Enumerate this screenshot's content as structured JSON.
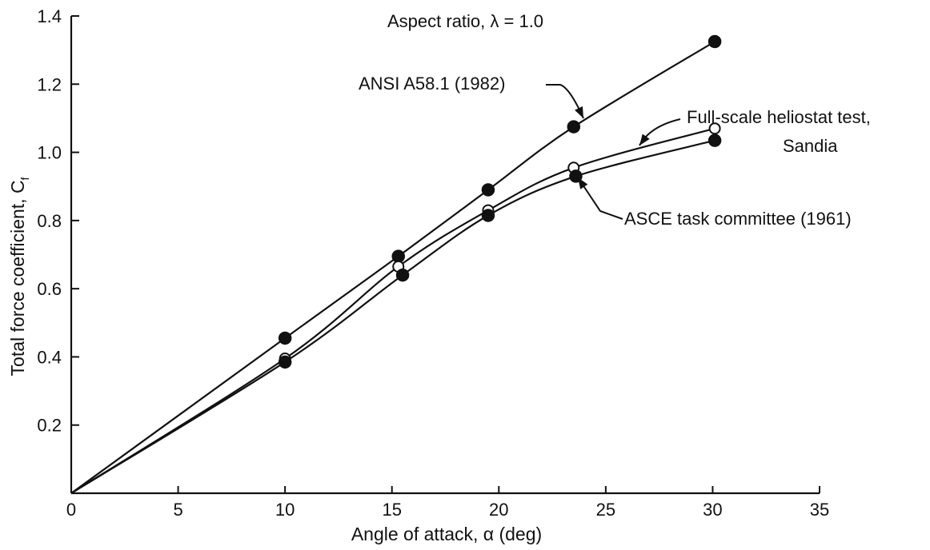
{
  "chart_data": {
    "type": "line",
    "title": "Aspect ratio, λ  =  1.0",
    "xlabel": "Angle of attack, α (deg)",
    "ylabel_main": "Total force coefficient, C",
    "ylabel_sub": "f",
    "xlim": [
      0,
      35
    ],
    "ylim": [
      0,
      1.4
    ],
    "x_ticks": [
      0,
      5,
      10,
      15,
      20,
      25,
      30,
      35
    ],
    "y_ticks": [
      0.2,
      0.4,
      0.6,
      0.8,
      1.0,
      1.2,
      1.4
    ],
    "x_tick_labels": [
      "0",
      "5",
      "10",
      "15",
      "20",
      "25",
      "30",
      "35"
    ],
    "y_tick_labels": [
      "0.2",
      "0.4",
      "0.6",
      "0.8",
      "1.0",
      "1.2",
      "1.4"
    ],
    "grid": false,
    "series": [
      {
        "name": "ANSI A58.1 (1982)",
        "marker": "filled",
        "x": [
          10,
          15.3,
          19.5,
          23.5,
          30.1
        ],
        "y": [
          0.455,
          0.695,
          0.89,
          1.075,
          1.325
        ]
      },
      {
        "name": "Full-scale heliostat test, Sandia",
        "marker": "open",
        "x": [
          10,
          15.3,
          19.5,
          23.5,
          30.1
        ],
        "y": [
          0.395,
          0.665,
          0.83,
          0.955,
          1.07
        ]
      },
      {
        "name": "ASCE task committee (1961)",
        "marker": "filled",
        "x": [
          10,
          15.5,
          19.5,
          23.6,
          30.1
        ],
        "y": [
          0.385,
          0.64,
          0.815,
          0.93,
          1.035
        ]
      }
    ],
    "annotations": {
      "ansi": "ANSI A58.1 (1982)",
      "fullscale_line1": "Full-scale heliostat test,",
      "fullscale_line2": "Sandia",
      "asce": "ASCE task committee (1961)"
    }
  }
}
